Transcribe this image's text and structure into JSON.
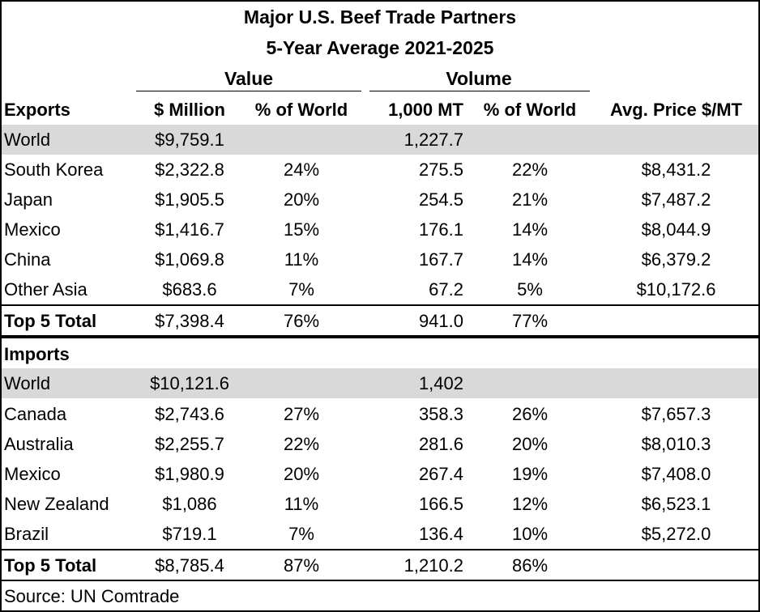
{
  "title": "Major U.S. Beef Trade Partners",
  "subtitle": "5-Year Average 2021-2025",
  "groups": {
    "value": "Value",
    "volume": "Volume"
  },
  "exports": {
    "header": [
      "Exports",
      "$ Million",
      "% of World",
      "1,000 MT",
      "% of World",
      "Avg. Price $/MT"
    ],
    "rows": [
      [
        "World",
        "$9,759.1",
        "",
        "1,227.7",
        "",
        ""
      ],
      [
        "South Korea",
        "$2,322.8",
        "24%",
        "275.5",
        "22%",
        "$8,431.2"
      ],
      [
        "Japan",
        "$1,905.5",
        "20%",
        "254.5",
        "21%",
        "$7,487.2"
      ],
      [
        "Mexico",
        "$1,416.7",
        "15%",
        "176.1",
        "14%",
        "$8,044.9"
      ],
      [
        "China",
        "$1,069.8",
        "11%",
        "167.7",
        "14%",
        "$6,379.2"
      ],
      [
        "Other Asia",
        "$683.6",
        "7%",
        "67.2",
        "5%",
        "$10,172.6"
      ],
      [
        "Top 5 Total",
        "$7,398.4",
        "76%",
        "941.0",
        "77%",
        ""
      ]
    ]
  },
  "imports": {
    "header": [
      "Imports"
    ],
    "rows": [
      [
        "World",
        "$10,121.6",
        "",
        "1,402",
        "",
        ""
      ],
      [
        "Canada",
        "$2,743.6",
        "27%",
        "358.3",
        "26%",
        "$7,657.3"
      ],
      [
        "Australia",
        "$2,255.7",
        "22%",
        "281.6",
        "20%",
        "$8,010.3"
      ],
      [
        "Mexico",
        "$1,980.9",
        "20%",
        "267.4",
        "19%",
        "$7,408.0"
      ],
      [
        "New Zealand",
        "$1,086",
        "11%",
        "166.5",
        "12%",
        "$6,523.1"
      ],
      [
        "Brazil",
        "$719.1",
        "7%",
        "136.4",
        "10%",
        "$5,272.0"
      ],
      [
        "Top 5 Total",
        "$8,785.4",
        "87%",
        "1,210.2",
        "86%",
        ""
      ]
    ]
  },
  "source": "Source: UN Comtrade"
}
